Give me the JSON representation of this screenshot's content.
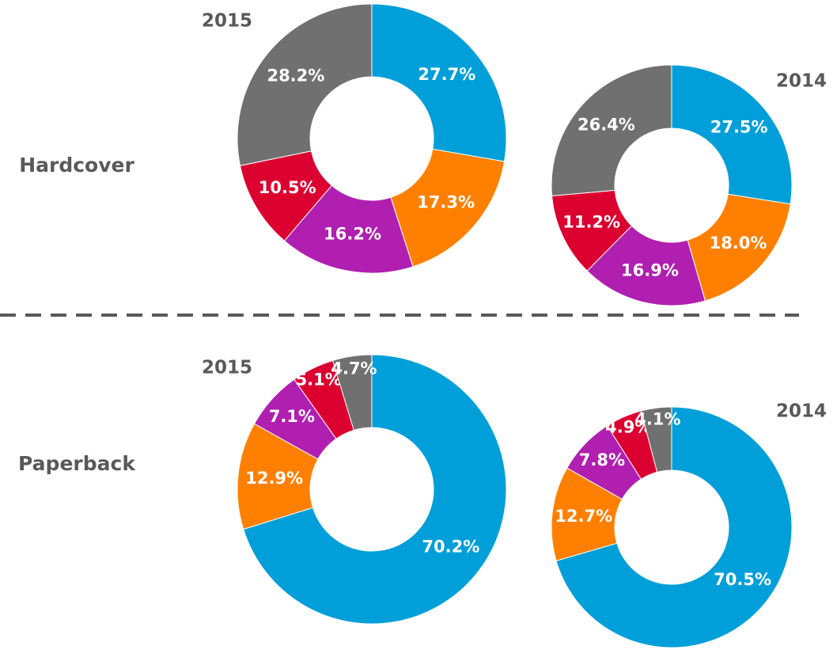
{
  "row_labels": [
    "Hardcover",
    "Paperback"
  ],
  "chart_data": [
    {
      "type": "donut",
      "title": "2015",
      "values": [
        27.7,
        17.3,
        16.2,
        10.5,
        28.2
      ],
      "value_labels": [
        "27.7%",
        "17.3%",
        "16.2%",
        "10.5%",
        "28.2%"
      ],
      "colors": [
        "#009fd9",
        "#ff8000",
        "#b01fb0",
        "#dc0030",
        "#707070"
      ]
    },
    {
      "type": "donut",
      "title": "2014",
      "values": [
        27.5,
        18.0,
        16.9,
        11.2,
        26.4
      ],
      "value_labels": [
        "27.5%",
        "18.0%",
        "16.9%",
        "11.2%",
        "26.4%"
      ],
      "colors": [
        "#009fd9",
        "#ff8000",
        "#b01fb0",
        "#dc0030",
        "#707070"
      ]
    },
    {
      "type": "donut",
      "title": "2015",
      "values": [
        70.2,
        12.9,
        7.1,
        5.1,
        4.7
      ],
      "value_labels": [
        "70.2%",
        "12.9%",
        "7.1%",
        "5.1%",
        "4.7%"
      ],
      "colors": [
        "#009fd9",
        "#ff8000",
        "#b01fb0",
        "#dc0030",
        "#707070"
      ]
    },
    {
      "type": "donut",
      "title": "2014",
      "values": [
        70.5,
        12.7,
        7.8,
        4.9,
        4.1
      ],
      "value_labels": [
        "70.5%",
        "12.7%",
        "7.8%",
        "4.9%",
        "4.1%"
      ],
      "colors": [
        "#009fd9",
        "#ff8000",
        "#b01fb0",
        "#dc0030",
        "#707070"
      ]
    }
  ]
}
